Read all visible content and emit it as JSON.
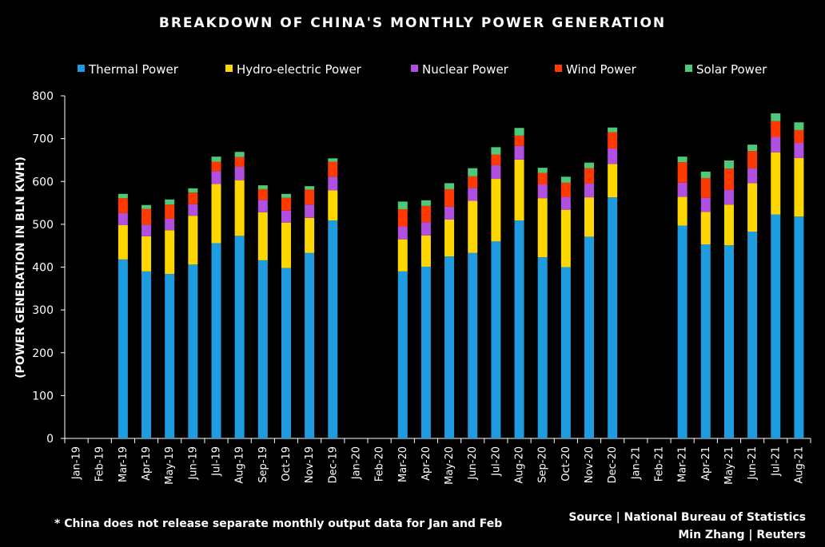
{
  "chart_data": {
    "type": "bar",
    "stacked": true,
    "title": "BREAKDOWN OF CHINA'S MONTHLY POWER GENERATION",
    "xlabel": "",
    "ylabel": "(POWER GENERATION IN BLN KWH)",
    "ylim": [
      0,
      800
    ],
    "yticks": [
      0,
      100,
      200,
      300,
      400,
      500,
      600,
      700,
      800
    ],
    "grid": false,
    "legend_position": "top",
    "categories": [
      "Jan-19",
      "Feb-19",
      "Mar-19",
      "Apr-19",
      "May-19",
      "Jun-19",
      "Jul-19",
      "Aug-19",
      "Sep-19",
      "Oct-19",
      "Nov-19",
      "Dec-19",
      "Jan-20",
      "Feb-20",
      "Mar-20",
      "Apr-20",
      "May-20",
      "Jun-20",
      "Jul-20",
      "Aug-20",
      "Sep-20",
      "Oct-20",
      "Nov-20",
      "Dec-20",
      "Jan-21",
      "Feb-21",
      "Mar-21",
      "Apr-21",
      "May-21",
      "Jun-21",
      "Jul-21",
      "Aug-21"
    ],
    "series": [
      {
        "name": "Thermal Power",
        "color": "#1F9BDF",
        "values": [
          null,
          null,
          418,
          390,
          384,
          406,
          456,
          473,
          416,
          398,
          433,
          509,
          null,
          null,
          390,
          401,
          425,
          433,
          460,
          509,
          423,
          400,
          471,
          563,
          null,
          null,
          497,
          453,
          451,
          483,
          523,
          518
        ]
      },
      {
        "name": "Hydro-electric Power",
        "color": "#FFD700",
        "values": [
          null,
          null,
          80,
          82,
          102,
          114,
          138,
          130,
          112,
          106,
          82,
          70,
          null,
          null,
          75,
          73,
          86,
          122,
          146,
          142,
          138,
          134,
          92,
          78,
          null,
          null,
          67,
          76,
          95,
          113,
          145,
          137
        ]
      },
      {
        "name": "Nuclear Power",
        "color": "#B04FE0",
        "values": [
          null,
          null,
          28,
          27,
          27,
          27,
          30,
          31,
          29,
          28,
          31,
          32,
          null,
          null,
          30,
          31,
          30,
          30,
          32,
          32,
          32,
          30,
          32,
          36,
          null,
          null,
          33,
          33,
          34,
          35,
          36,
          35
        ]
      },
      {
        "name": "Wind Power",
        "color": "#FF3A00",
        "values": [
          null,
          null,
          35,
          37,
          33,
          27,
          22,
          23,
          25,
          30,
          35,
          35,
          null,
          null,
          40,
          38,
          41,
          27,
          25,
          24,
          27,
          33,
          36,
          38,
          null,
          null,
          48,
          46,
          50,
          40,
          37,
          30
        ]
      },
      {
        "name": "Solar Power",
        "color": "#4DC97A",
        "values": [
          null,
          null,
          10,
          9,
          12,
          10,
          12,
          12,
          9,
          9,
          8,
          8,
          null,
          null,
          18,
          13,
          14,
          19,
          17,
          18,
          12,
          14,
          13,
          11,
          null,
          null,
          13,
          15,
          19,
          15,
          18,
          18
        ]
      }
    ]
  },
  "footer": {
    "note": "* China does not release separate monthly output data for Jan and Feb",
    "source_line1": "Source | National Bureau of Statistics",
    "source_line2": "Min Zhang | Reuters"
  }
}
